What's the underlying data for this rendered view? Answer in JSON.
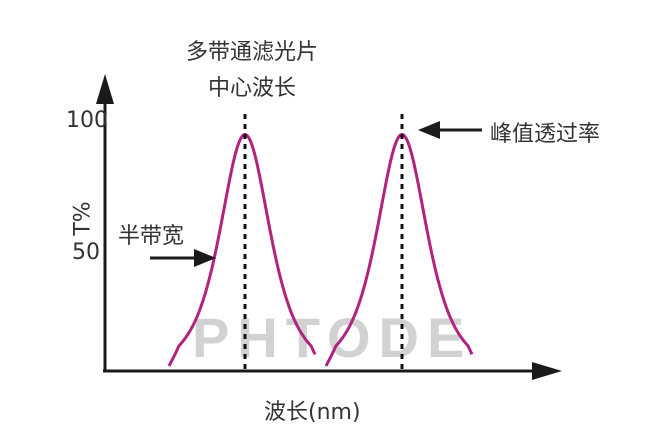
{
  "labels": {
    "center_wavelength_line1": "多带通滤光片",
    "center_wavelength_line2": "中心波长",
    "peak_transmittance": "峰值透过率",
    "half_bandwidth": "半带宽",
    "watermark": "PHTODE"
  },
  "chart_data": {
    "type": "line",
    "title": "",
    "xlabel": "波长(nm)",
    "ylabel": "T%",
    "yticks": [
      "100",
      "50"
    ],
    "ytick_values": [
      100,
      50
    ],
    "ylim": [
      0,
      110
    ],
    "peaks": [
      {
        "peak_value": 95
      },
      {
        "peak_value": 95
      }
    ],
    "grid": false,
    "colors": {
      "curve": "#b0237f",
      "axis": "#1a1a1a",
      "dotted": "#111111",
      "watermark": "#cfcfcf"
    }
  }
}
